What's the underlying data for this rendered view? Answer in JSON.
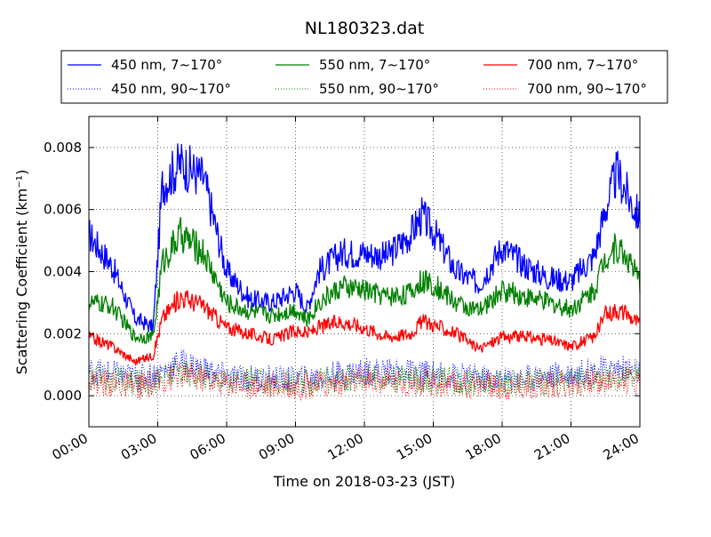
{
  "chart_data": {
    "type": "line",
    "title": "NL180323.dat",
    "xlabel": "Time on 2018-03-23 (JST)",
    "ylabel": "Scattering Coefficient (km⁻¹)",
    "x_unit": "hours",
    "xlim": [
      0,
      24
    ],
    "ylim": [
      -0.001,
      0.009
    ],
    "x_ticks": [
      0,
      3,
      6,
      9,
      12,
      15,
      18,
      21,
      24
    ],
    "x_tick_labels": [
      "00:00",
      "03:00",
      "06:00",
      "09:00",
      "12:00",
      "15:00",
      "18:00",
      "21:00",
      "24:00"
    ],
    "y_ticks": [
      0.0,
      0.002,
      0.004,
      0.006,
      0.008
    ],
    "y_tick_labels": [
      "0.000",
      "0.002",
      "0.004",
      "0.006",
      "0.008"
    ],
    "grid": true,
    "legend_position": "top, above plot, 3 columns",
    "series": [
      {
        "name": "450 nm, 7∼170°",
        "color": "#0000ff",
        "style": "solid",
        "x": [
          0,
          1,
          2,
          2.8,
          3.2,
          4,
          5,
          6,
          7,
          8,
          9,
          9.5,
          10,
          11,
          12,
          13,
          14,
          14.5,
          15,
          16,
          17,
          18,
          19,
          20,
          21,
          22,
          22.5,
          23,
          23.5,
          24
        ],
        "y": [
          0.0052,
          0.0042,
          0.0025,
          0.0022,
          0.0068,
          0.0075,
          0.007,
          0.004,
          0.0031,
          0.003,
          0.0034,
          0.0028,
          0.004,
          0.0046,
          0.0046,
          0.0045,
          0.0052,
          0.0058,
          0.0053,
          0.004,
          0.0036,
          0.0048,
          0.0042,
          0.0038,
          0.0037,
          0.0045,
          0.006,
          0.0072,
          0.0064,
          0.0057
        ]
      },
      {
        "name": "550 nm, 7∼170°",
        "color": "#008000",
        "style": "solid",
        "x": [
          0,
          1,
          2,
          2.8,
          3.2,
          4,
          5,
          6,
          7,
          8,
          9,
          9.5,
          10,
          11,
          12,
          13,
          14,
          14.5,
          15,
          16,
          17,
          18,
          19,
          20,
          21,
          22,
          22.5,
          23,
          23.5,
          24
        ],
        "y": [
          0.003,
          0.0029,
          0.0019,
          0.0019,
          0.0043,
          0.0052,
          0.0046,
          0.003,
          0.0027,
          0.0026,
          0.0028,
          0.0024,
          0.003,
          0.0035,
          0.0034,
          0.0032,
          0.0033,
          0.0037,
          0.0036,
          0.003,
          0.0027,
          0.0034,
          0.0032,
          0.003,
          0.0028,
          0.0034,
          0.0045,
          0.0048,
          0.0044,
          0.0036
        ]
      },
      {
        "name": "700 nm, 7∼170°",
        "color": "#ff0000",
        "style": "solid",
        "x": [
          0,
          1,
          2,
          2.8,
          3.2,
          4,
          5,
          6,
          7,
          8,
          9,
          9.5,
          10,
          11,
          12,
          13,
          14,
          14.5,
          15,
          16,
          17,
          18,
          19,
          20,
          21,
          22,
          22.5,
          23,
          23.5,
          24
        ],
        "y": [
          0.0019,
          0.0016,
          0.0011,
          0.0013,
          0.0025,
          0.0032,
          0.0029,
          0.0022,
          0.002,
          0.0018,
          0.0021,
          0.002,
          0.0022,
          0.0024,
          0.0022,
          0.0019,
          0.002,
          0.0024,
          0.0023,
          0.002,
          0.0015,
          0.0019,
          0.0019,
          0.0018,
          0.0016,
          0.0019,
          0.0026,
          0.0028,
          0.0026,
          0.0023
        ]
      },
      {
        "name": "450 nm, 90∼170°",
        "color": "#0000ff",
        "style": "dotted",
        "x": [
          0,
          2,
          3,
          4,
          6,
          9,
          12,
          15,
          18,
          21,
          23,
          24
        ],
        "y": [
          0.0008,
          0.0006,
          0.0007,
          0.0011,
          0.0006,
          0.0005,
          0.0008,
          0.0007,
          0.0005,
          0.0007,
          0.0009,
          0.0008
        ]
      },
      {
        "name": "550 nm, 90∼170°",
        "color": "#008000",
        "style": "dotted",
        "x": [
          0,
          2,
          3,
          4,
          6,
          9,
          12,
          15,
          18,
          21,
          23,
          24
        ],
        "y": [
          0.0006,
          0.0004,
          0.0005,
          0.0008,
          0.0005,
          0.0004,
          0.0006,
          0.0005,
          0.0004,
          0.0005,
          0.0006,
          0.0006
        ]
      },
      {
        "name": "700 nm, 90∼170°",
        "color": "#ff0000",
        "style": "dotted",
        "x": [
          0,
          2,
          3,
          4,
          6,
          9,
          12,
          15,
          18,
          21,
          23,
          24
        ],
        "y": [
          0.0005,
          0.0003,
          0.0004,
          0.0007,
          0.0004,
          0.0003,
          0.0005,
          0.0004,
          0.0003,
          0.0004,
          0.0005,
          0.0005
        ]
      }
    ]
  }
}
